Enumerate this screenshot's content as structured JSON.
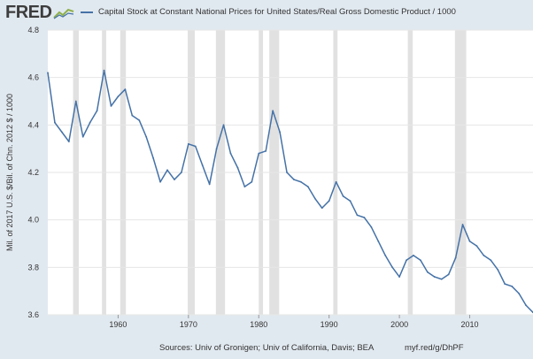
{
  "header": {
    "logo_text": "FRED",
    "logo_icon": "fred-chart-logo-icon",
    "legend_label": "Capital Stock at Constant National Prices for United States/Real Gross Domestic Product / 1000"
  },
  "footer": {
    "sources": "Sources: Univ of Gronigen; Univ of California, Davis; BEA",
    "link": "myf.red/g/DhPF"
  },
  "colors": {
    "page_bg": "#e1e9f0",
    "plot_bg": "#ffffff",
    "series": "#4572a7",
    "recession": "#e1e1e1",
    "grid": "#e6e6e6"
  },
  "chart_data": {
    "type": "line",
    "title": "",
    "xlabel": "",
    "ylabel": "Mil. of 2017 U.S. $/Bil. of Chn. 2012 $ / 1000",
    "xlim": [
      1950,
      2019
    ],
    "ylim": [
      3.6,
      4.8
    ],
    "yticks": [
      "3.6",
      "3.8",
      "4.0",
      "4.2",
      "4.4",
      "4.6",
      "4.8"
    ],
    "xticks": [
      "1960",
      "1970",
      "1980",
      "1990",
      "2000",
      "2010"
    ],
    "grid": true,
    "legend_placement": "top",
    "recessions": [
      [
        1953.6,
        1954.4
      ],
      [
        1957.7,
        1958.3
      ],
      [
        1960.3,
        1961.1
      ],
      [
        1969.9,
        1970.9
      ],
      [
        1973.9,
        1975.2
      ],
      [
        1980.0,
        1980.6
      ],
      [
        1981.5,
        1982.9
      ],
      [
        1990.6,
        1991.2
      ],
      [
        2001.2,
        2001.9
      ],
      [
        2007.9,
        2009.5
      ]
    ],
    "series": [
      {
        "name": "Capital Stock at Constant National Prices for United States/Real Gross Domestic Product / 1000",
        "x": [
          1950,
          1951,
          1952,
          1953,
          1954,
          1955,
          1956,
          1957,
          1958,
          1959,
          1960,
          1961,
          1962,
          1963,
          1964,
          1965,
          1966,
          1967,
          1968,
          1969,
          1970,
          1971,
          1972,
          1973,
          1974,
          1975,
          1976,
          1977,
          1978,
          1979,
          1980,
          1981,
          1982,
          1983,
          1984,
          1985,
          1986,
          1987,
          1988,
          1989,
          1990,
          1991,
          1992,
          1993,
          1994,
          1995,
          1996,
          1997,
          1998,
          1999,
          2000,
          2001,
          2002,
          2003,
          2004,
          2005,
          2006,
          2007,
          2008,
          2009,
          2010,
          2011,
          2012,
          2013,
          2014,
          2015,
          2016,
          2017,
          2018,
          2019
        ],
        "y": [
          4.62,
          4.41,
          4.37,
          4.33,
          4.5,
          4.35,
          4.41,
          4.46,
          4.63,
          4.48,
          4.52,
          4.55,
          4.44,
          4.42,
          4.35,
          4.26,
          4.16,
          4.21,
          4.17,
          4.2,
          4.32,
          4.31,
          4.23,
          4.15,
          4.3,
          4.4,
          4.28,
          4.22,
          4.14,
          4.16,
          4.28,
          4.29,
          4.46,
          4.37,
          4.2,
          4.17,
          4.16,
          4.14,
          4.09,
          4.05,
          4.08,
          4.16,
          4.1,
          4.08,
          4.02,
          4.01,
          3.97,
          3.91,
          3.85,
          3.8,
          3.76,
          3.83,
          3.85,
          3.83,
          3.78,
          3.76,
          3.75,
          3.77,
          3.84,
          3.98,
          3.91,
          3.89,
          3.85,
          3.83,
          3.79,
          3.73,
          3.72,
          3.69,
          3.64,
          3.61
        ]
      }
    ]
  }
}
